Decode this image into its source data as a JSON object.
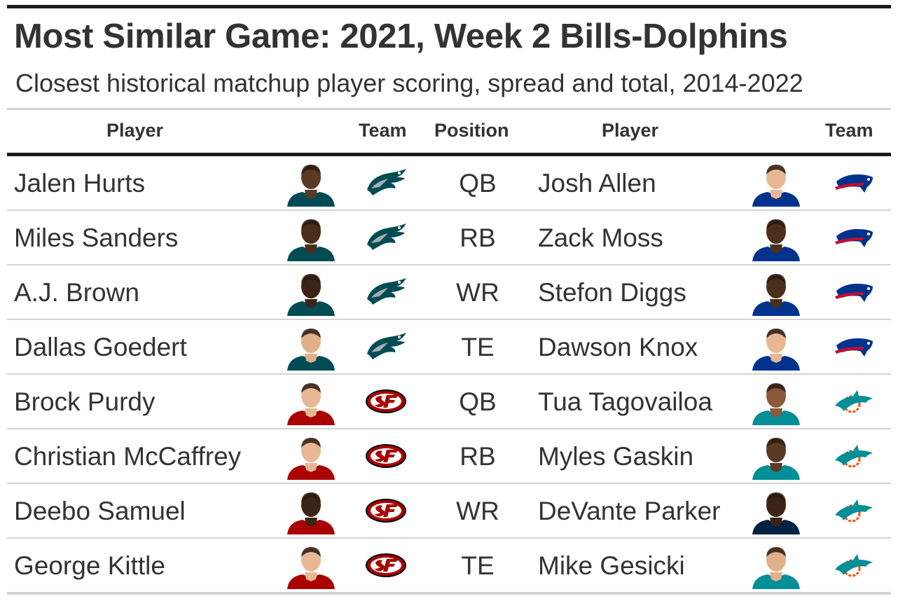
{
  "title": "Most Similar Game: 2021, Week 2 Bills-Dolphins",
  "subtitle": "Closest historical matchup player scoring, spread and total, 2014-2022",
  "headers": {
    "player1": "Player",
    "team1": "Team",
    "position": "Position",
    "player2": "Player",
    "team2": "Team"
  },
  "colors": {
    "eagles_green": "#004c54",
    "eagles_silver": "#a5acaf",
    "niners_red": "#aa0000",
    "niners_gold": "#b3995d",
    "bills_blue": "#00338d",
    "bills_red": "#c60c30",
    "dolphins_aqua": "#008e97",
    "dolphins_orange": "#fc4c02",
    "patriots_navy": "#002244"
  },
  "chart_data": {
    "type": "table",
    "title": "Most Similar Game: 2021, Week 2 Bills-Dolphins",
    "subtitle": "Closest historical matchup player scoring, spread and total, 2014-2022",
    "columns": [
      "Player",
      "Team",
      "Position",
      "Player",
      "Team"
    ],
    "rows": [
      {
        "player1": "Jalen Hurts",
        "team1": "eagles",
        "position": "QB",
        "player2": "Josh Allen",
        "team2": "bills",
        "jersey1": "#004c54",
        "skin1": "#5a3a22",
        "jersey2": "#00338d",
        "skin2": "#e8b896"
      },
      {
        "player1": "Miles Sanders",
        "team1": "eagles",
        "position": "RB",
        "player2": "Zack Moss",
        "team2": "bills",
        "jersey1": "#004c54",
        "skin1": "#4a2f1c",
        "jersey2": "#00338d",
        "skin2": "#4a2f1c"
      },
      {
        "player1": "A.J. Brown",
        "team1": "eagles",
        "position": "WR",
        "player2": "Stefon Diggs",
        "team2": "bills",
        "jersey1": "#004c54",
        "skin1": "#3b2416",
        "jersey2": "#00338d",
        "skin2": "#4a2f1c"
      },
      {
        "player1": "Dallas Goedert",
        "team1": "eagles",
        "position": "TE",
        "player2": "Dawson Knox",
        "team2": "bills",
        "jersey1": "#004c54",
        "skin1": "#e0b08a",
        "jersey2": "#00338d",
        "skin2": "#e8b896"
      },
      {
        "player1": "Brock Purdy",
        "team1": "niners",
        "position": "QB",
        "player2": "Tua Tagovailoa",
        "team2": "dolphins",
        "jersey1": "#aa0000",
        "skin1": "#e8b896",
        "jersey2": "#008e97",
        "skin2": "#8a5a3a"
      },
      {
        "player1": "Christian McCaffrey",
        "team1": "niners",
        "position": "RB",
        "player2": "Myles Gaskin",
        "team2": "dolphins",
        "jersey1": "#aa0000",
        "skin1": "#e8b896",
        "jersey2": "#008e97",
        "skin2": "#5a3a22"
      },
      {
        "player1": "Deebo Samuel",
        "team1": "niners",
        "position": "WR",
        "player2": "DeVante Parker",
        "team2": "dolphins",
        "jersey1": "#aa0000",
        "skin1": "#3b2416",
        "jersey2": "#002244",
        "skin2": "#3b2416"
      },
      {
        "player1": "George Kittle",
        "team1": "niners",
        "position": "TE",
        "player2": "Mike Gesicki",
        "team2": "dolphins",
        "jersey1": "#aa0000",
        "skin1": "#e8b896",
        "jersey2": "#008e97",
        "skin2": "#e0b08a"
      }
    ]
  }
}
